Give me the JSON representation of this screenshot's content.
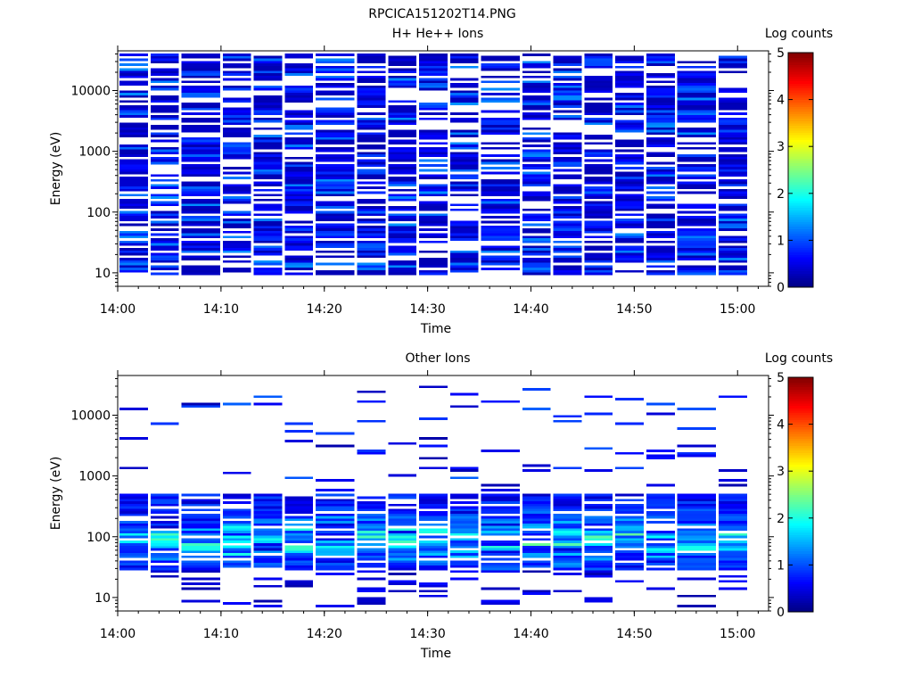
{
  "figure_title": "RPCICA151202T14.PNG",
  "chart_data": [
    {
      "type": "heatmap",
      "title": "H+ He++ Ions",
      "xlabel": "Time",
      "ylabel": "Energy (eV)",
      "x_ticks": [
        "14:00",
        "14:10",
        "14:20",
        "14:30",
        "14:40",
        "14:50",
        "15:00"
      ],
      "x_range": [
        "14:00",
        "15:03"
      ],
      "y_scale": "log",
      "y_ticks": [
        "10",
        "100",
        "1000",
        "10000"
      ],
      "y_range": [
        6,
        45000
      ],
      "colorbar": {
        "label": "Log counts",
        "range": [
          0,
          5
        ],
        "ticks": [
          "0",
          "1",
          "2",
          "3",
          "4",
          "5"
        ]
      },
      "time_bins_start": [
        "14:00",
        "14:03",
        "14:06",
        "14:10",
        "14:13",
        "14:16",
        "14:19",
        "14:23",
        "14:26",
        "14:29",
        "14:32",
        "14:35",
        "14:39",
        "14:42",
        "14:45",
        "14:48",
        "14:51",
        "14:54",
        "14:58"
      ],
      "coverage": {
        "energy_min": 10,
        "energy_max": 40000,
        "log_counts_typical": [
          0.2,
          1.3
        ]
      },
      "grid": false
    },
    {
      "type": "heatmap",
      "title": "Other Ions",
      "xlabel": "Time",
      "ylabel": "Energy (eV)",
      "x_ticks": [
        "14:00",
        "14:10",
        "14:20",
        "14:30",
        "14:40",
        "14:50",
        "15:00"
      ],
      "x_range": [
        "14:00",
        "15:03"
      ],
      "y_scale": "log",
      "y_ticks": [
        "10",
        "100",
        "1000",
        "10000"
      ],
      "y_range": [
        6,
        45000
      ],
      "colorbar": {
        "label": "Log counts",
        "range": [
          0,
          5
        ],
        "ticks": [
          "0",
          "1",
          "2",
          "3",
          "4",
          "5"
        ]
      },
      "time_bins_start": [
        "14:00",
        "14:03",
        "14:06",
        "14:10",
        "14:13",
        "14:16",
        "14:19",
        "14:23",
        "14:26",
        "14:29",
        "14:32",
        "14:35",
        "14:39",
        "14:42",
        "14:45",
        "14:48",
        "14:51",
        "14:54",
        "14:58"
      ],
      "coverage": {
        "energy_min": 8,
        "energy_max": 30000,
        "peak_energy_band": [
          30,
          500
        ],
        "log_counts_peak": 2.6
      },
      "grid": false
    }
  ]
}
